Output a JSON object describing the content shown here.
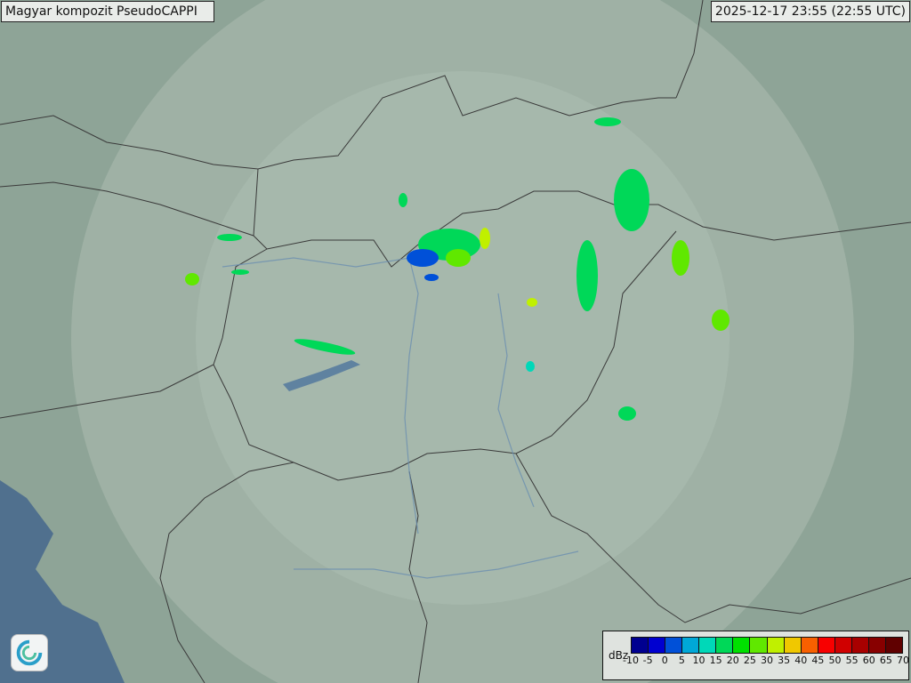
{
  "header": {
    "title": "Magyar kompozit  PseudoCAPPI",
    "timestamp": "2025-12-17 23:55 (22:55 UTC)"
  },
  "legend": {
    "unit": "dBz",
    "ticks": [
      "-10",
      "-5",
      "0",
      "5",
      "10",
      "15",
      "20",
      "25",
      "30",
      "35",
      "40",
      "45",
      "50",
      "55",
      "60",
      "65",
      "70"
    ],
    "colors": [
      "#000090",
      "#0000d0",
      "#0050d8",
      "#00a8d8",
      "#00d8b8",
      "#00d858",
      "#00e000",
      "#60e800",
      "#c0f000",
      "#f0c800",
      "#f86000",
      "#f80000",
      "#d00000",
      "#a80000",
      "#880000",
      "#600000"
    ]
  },
  "colors": {
    "map_land": "#8ea497",
    "radar_coverage": "#a9bcb0",
    "sea": "#4f6f8f"
  },
  "logo": {
    "icon": "swirl-logo-icon"
  }
}
